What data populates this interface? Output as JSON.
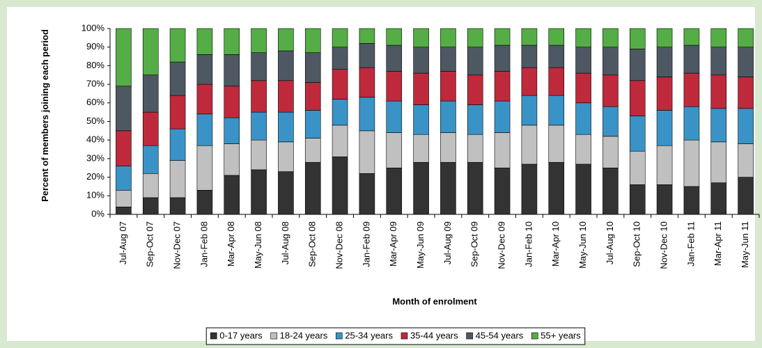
{
  "chart_data": {
    "type": "stacked_bar_100",
    "x_label": "Month of enrolment",
    "y_label": "Percent of members joining each period",
    "categories": [
      "Jul-Aug 07",
      "Sep-Oct 07",
      "Nov-Dec 07",
      "Jan-Feb 08",
      "Mar-Apr 08",
      "May-Jun 08",
      "Jul-Aug 08",
      "Sep-Oct 08",
      "Nov-Dec 08",
      "Jan-Feb 09",
      "Mar-Apr 09",
      "May-Jun 09",
      "Jul-Aug 09",
      "Sep-Oct 09",
      "Nov-Dec 09",
      "Jan-Feb 10",
      "Mar-Apr 10",
      "May-Jun 10",
      "Jul-Aug 10",
      "Sep-Oct 10",
      "Nov-Dec 10",
      "Jan-Feb 11",
      "Mar-Apr 11",
      "May-Jun 11"
    ],
    "series": [
      {
        "name": "0-17 years",
        "color": "#333333",
        "values": [
          4,
          9,
          9,
          13,
          21,
          24,
          23,
          28,
          31,
          22,
          25,
          28,
          28,
          28,
          25,
          27,
          28,
          27,
          25,
          16,
          16,
          15,
          17,
          20
        ]
      },
      {
        "name": "18-24 years",
        "color": "#c0c0c0",
        "values": [
          9,
          13,
          20,
          24,
          17,
          16,
          16,
          13,
          17,
          23,
          19,
          15,
          16,
          15,
          19,
          21,
          20,
          16,
          17,
          18,
          21,
          25,
          22,
          18
        ]
      },
      {
        "name": "25-34 years",
        "color": "#3a93c6",
        "values": [
          13,
          15,
          17,
          17,
          14,
          15,
          16,
          15,
          14,
          18,
          17,
          16,
          17,
          16,
          17,
          16,
          16,
          17,
          16,
          19,
          19,
          18,
          18,
          19
        ]
      },
      {
        "name": "35-44 years",
        "color": "#be2a3c",
        "values": [
          19,
          18,
          18,
          16,
          17,
          17,
          17,
          15,
          16,
          16,
          16,
          17,
          16,
          16,
          16,
          15,
          15,
          16,
          17,
          19,
          18,
          18,
          18,
          17
        ]
      },
      {
        "name": "45-54 years",
        "color": "#4e5863",
        "values": [
          24,
          20,
          18,
          16,
          17,
          15,
          16,
          16,
          12,
          13,
          14,
          14,
          13,
          15,
          14,
          12,
          12,
          14,
          15,
          17,
          16,
          15,
          15,
          16
        ]
      },
      {
        "name": "55+ years",
        "color": "#55ad45",
        "values": [
          31,
          25,
          18,
          14,
          14,
          13,
          12,
          13,
          10,
          8,
          9,
          10,
          10,
          10,
          9,
          9,
          9,
          10,
          10,
          11,
          10,
          9,
          10,
          10
        ]
      }
    ],
    "ylim": [
      0,
      100
    ],
    "yticks": [
      {
        "value": 0,
        "label": "0%"
      },
      {
        "value": 10,
        "label": "10%"
      },
      {
        "value": 20,
        "label": "20%"
      },
      {
        "value": 30,
        "label": "30%"
      },
      {
        "value": 40,
        "label": "40%"
      },
      {
        "value": 50,
        "label": "50%"
      },
      {
        "value": 60,
        "label": "60%"
      },
      {
        "value": 70,
        "label": "70%"
      },
      {
        "value": 80,
        "label": "80%"
      },
      {
        "value": 90,
        "label": "90%"
      },
      {
        "value": 100,
        "label": "100%"
      }
    ],
    "legend": "bottom"
  }
}
